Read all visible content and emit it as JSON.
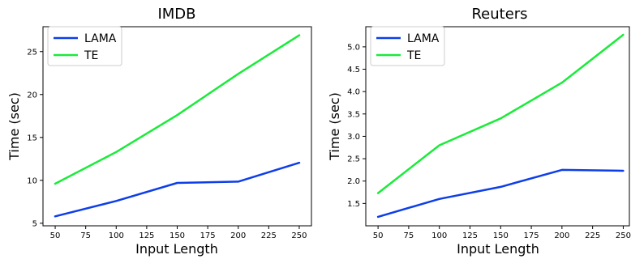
{
  "chart_data": [
    {
      "type": "line",
      "title": "IMDB",
      "xlabel": "Input Length",
      "ylabel": "Time (sec)",
      "x": [
        50,
        100,
        150,
        200,
        250
      ],
      "xticks": [
        50,
        75,
        100,
        125,
        150,
        175,
        200,
        225,
        250
      ],
      "yticks": [
        5,
        10,
        15,
        20,
        25
      ],
      "xlim": [
        40,
        260
      ],
      "ylim": [
        4.7,
        27.9
      ],
      "grid": false,
      "legend": "top-left",
      "series": [
        {
          "name": "LAMA",
          "color": "#0d3ee8",
          "values": [
            5.8,
            7.6,
            9.7,
            9.85,
            12.05
          ]
        },
        {
          "name": "TE",
          "color": "#1aeb3a",
          "values": [
            9.6,
            13.3,
            17.6,
            22.4,
            26.9
          ]
        }
      ]
    },
    {
      "type": "line",
      "title": "Reuters",
      "xlabel": "Input Length",
      "ylabel": "Time (sec)",
      "x": [
        50,
        100,
        150,
        200,
        250
      ],
      "xticks": [
        50,
        75,
        100,
        125,
        150,
        175,
        200,
        225,
        250
      ],
      "yticks": [
        1.5,
        2.0,
        2.5,
        3.0,
        3.5,
        4.0,
        4.5,
        5.0
      ],
      "ytick_decimals": 1,
      "xlim": [
        40,
        255
      ],
      "ylim": [
        1.0,
        5.45
      ],
      "grid": false,
      "legend": "top-left",
      "series": [
        {
          "name": "LAMA",
          "color": "#0d3ee8",
          "values": [
            1.2,
            1.6,
            1.87,
            2.25,
            2.23
          ]
        },
        {
          "name": "TE",
          "color": "#1aeb3a",
          "values": [
            1.73,
            2.8,
            3.4,
            4.2,
            5.27
          ]
        }
      ]
    }
  ]
}
